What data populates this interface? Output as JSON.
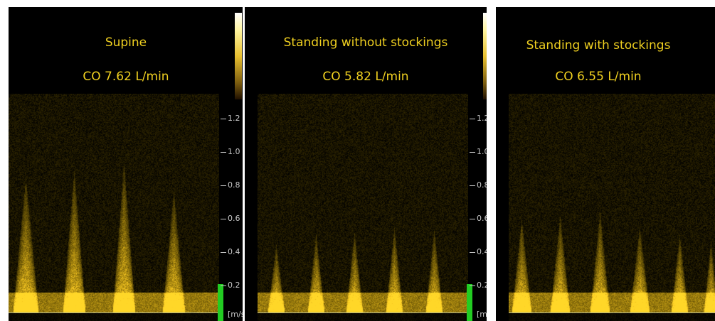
{
  "panels": [
    {
      "title": "Supine",
      "co": "CO 7.62 L/min"
    },
    {
      "title": "Standing without stockings",
      "co": "CO 5.82 L/min"
    },
    {
      "title": "Standing with stockings",
      "co": "CO 6.55 L/min"
    }
  ],
  "scale": {
    "ticks": [
      "1.2",
      "1.0",
      "0.8",
      "0.6",
      "0.4",
      "0.2"
    ],
    "units": "[m/s"
  },
  "colors": {
    "text": "#f0d020",
    "spectral": "#e8c020",
    "green_indicator": "#22cc22"
  }
}
